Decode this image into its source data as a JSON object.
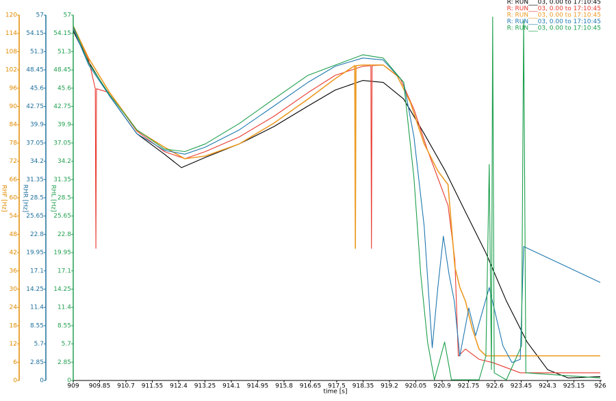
{
  "chart_data": {
    "type": "line",
    "xlabel": "time [s]",
    "xlim": [
      909,
      926
    ],
    "xticks": [
      909,
      909.85,
      910.7,
      911.55,
      912.4,
      913.25,
      914.1,
      914.95,
      915.8,
      916.65,
      917.5,
      918.35,
      919.2,
      920.05,
      920.9,
      921.75,
      922.6,
      923.45,
      924.3,
      925.15,
      926
    ],
    "ylabel": "RHL [Hz]",
    "ycolor": "#22a050",
    "ylim": [
      0,
      57
    ],
    "yticks": [
      0,
      2.85,
      5.7,
      8.55,
      11.4,
      14.25,
      17.1,
      19.95,
      22.8,
      25.65,
      28.5,
      31.35,
      34.2,
      37.05,
      39.9,
      42.75,
      45.6,
      48.45,
      51.3,
      54.15,
      57
    ],
    "y2label": "RHR [Hz]",
    "y2color": "#1c6f9c",
    "y2lim": [
      0,
      57
    ],
    "y2ticks": [
      0,
      2.85,
      5.7,
      8.55,
      11.4,
      14.25,
      17.1,
      19.95,
      22.8,
      25.65,
      28.5,
      31.35,
      34.2,
      37.05,
      39.9,
      42.75,
      45.6,
      48.45,
      51.3,
      54.15,
      57
    ],
    "y3label": "RHF [Hz]",
    "y3color": "#e08a00",
    "y3lim": [
      0,
      120
    ],
    "y3ticks": [
      0,
      6,
      12,
      18,
      24,
      30,
      36,
      42,
      48,
      54,
      60,
      66,
      72,
      78,
      84,
      90,
      96,
      102,
      108,
      114,
      120
    ],
    "legend": "upper right",
    "series": [
      {
        "name": "R: RUN___03, 0.00 to 17:10:45",
        "color": "#000000",
        "axis": "y",
        "x": [
          909,
          909.5,
          910.17,
          911.05,
          911.94,
          912.49,
          913.26,
          914.36,
          915.47,
          916.57,
          917.45,
          918.34,
          919.0,
          919.66,
          920.32,
          921.0,
          921.65,
          922.31,
          922.97,
          923.64,
          924.3,
          924.96,
          926
        ],
        "values": [
          54.5,
          49.7,
          44.4,
          38.5,
          35.3,
          33.2,
          34.8,
          36.9,
          39.6,
          42.8,
          45.3,
          46.8,
          46.5,
          43.9,
          38.5,
          32.7,
          26.3,
          19.9,
          12.4,
          6.0,
          1.7,
          0.4,
          0.6
        ]
      },
      {
        "name": "R: RUN___03, 0.00 to 17:10:45",
        "color": "#e8392f",
        "axis": "y",
        "x": [
          909,
          909.5,
          909.71,
          909.73,
          909.75,
          910.17,
          911.05,
          911.94,
          912.6,
          913.26,
          914.36,
          915.47,
          916.57,
          917.45,
          918.34,
          918.6,
          918.62,
          918.64,
          919.0,
          919.55,
          919.99,
          920.43,
          920.76,
          921.09,
          921.31,
          921.42,
          921.65,
          922.09,
          922.53,
          923.42,
          926
        ],
        "values": [
          55.1,
          50.0,
          45.5,
          20.6,
          45.5,
          44.9,
          38.9,
          35.7,
          34.6,
          35.7,
          38.0,
          41.2,
          44.9,
          47.6,
          49.0,
          49.1,
          20.6,
          49.1,
          49.2,
          47.1,
          42.3,
          35.9,
          31.6,
          27.3,
          18.8,
          3.8,
          4.9,
          3.3,
          2.8,
          1.2,
          1.2
        ]
      },
      {
        "name": "R: RUN___03, 0.00 to 17:10:45",
        "color": "#ec9a22",
        "axis": "y3",
        "x": [
          909,
          909.5,
          910.17,
          911.05,
          911.94,
          912.6,
          913.26,
          914.36,
          915.47,
          916.57,
          917.45,
          918.08,
          918.1,
          918.12,
          918.34,
          919.0,
          919.44,
          919.88,
          920.32,
          920.76,
          921.09,
          921.31,
          921.47,
          921.65,
          921.87,
          922.09,
          922.31,
          926
        ],
        "values": [
          116.4,
          105.8,
          94.6,
          82.2,
          76.6,
          72.8,
          73.7,
          77.7,
          84.5,
          92.4,
          99.1,
          103.4,
          43.4,
          103.4,
          103.6,
          103.6,
          100.2,
          91.2,
          77.7,
          68.8,
          64.3,
          37.3,
          30.6,
          26.1,
          17.1,
          10.3,
          8.1,
          8.1
        ]
      },
      {
        "name": "R: RUN___03, 0.00 to 17:10:45",
        "color": "#1f78b0",
        "axis": "y2",
        "x": [
          909,
          909.5,
          910.17,
          911.05,
          911.94,
          912.6,
          913.26,
          914.36,
          915.47,
          916.57,
          917.45,
          918.34,
          919.0,
          919.66,
          919.99,
          920.32,
          920.58,
          920.76,
          920.94,
          921.12,
          921.29,
          921.47,
          921.76,
          921.98,
          922.42,
          922.86,
          923.15,
          923.42,
          923.53,
          926
        ],
        "values": [
          54.9,
          49.2,
          44.4,
          38.5,
          35.9,
          35.3,
          36.4,
          39.1,
          42.8,
          46.5,
          49.0,
          50.3,
          50.0,
          46.5,
          38.0,
          24.1,
          5.1,
          14.5,
          22.5,
          16.6,
          12.4,
          3.8,
          11.3,
          7.0,
          14.5,
          5.4,
          2.8,
          3.3,
          20.9,
          15.3
        ]
      },
      {
        "name": "R: RUN___03, 0.00 to 17:10:45",
        "color": "#1a9e4a",
        "axis": "y",
        "x": [
          909,
          909.5,
          910.17,
          911.05,
          911.94,
          912.6,
          913.26,
          914.36,
          915.47,
          916.57,
          917.45,
          918.34,
          919.0,
          919.66,
          919.99,
          920.21,
          920.43,
          920.65,
          920.98,
          921.2,
          922.09,
          922.31,
          922.42,
          922.49,
          922.53,
          922.58,
          922.97,
          923.46,
          923.53,
          923.6,
          926
        ],
        "values": [
          55.3,
          49.5,
          44.6,
          39.1,
          36.1,
          35.7,
          36.9,
          40.1,
          43.9,
          47.6,
          49.2,
          50.8,
          50.3,
          46.5,
          31.6,
          16.6,
          6.0,
          0.1,
          6.0,
          0.1,
          0.1,
          3.8,
          33.7,
          1.7,
          56.7,
          1.2,
          0.1,
          5.4,
          56.1,
          1.2,
          0.4
        ]
      }
    ]
  }
}
